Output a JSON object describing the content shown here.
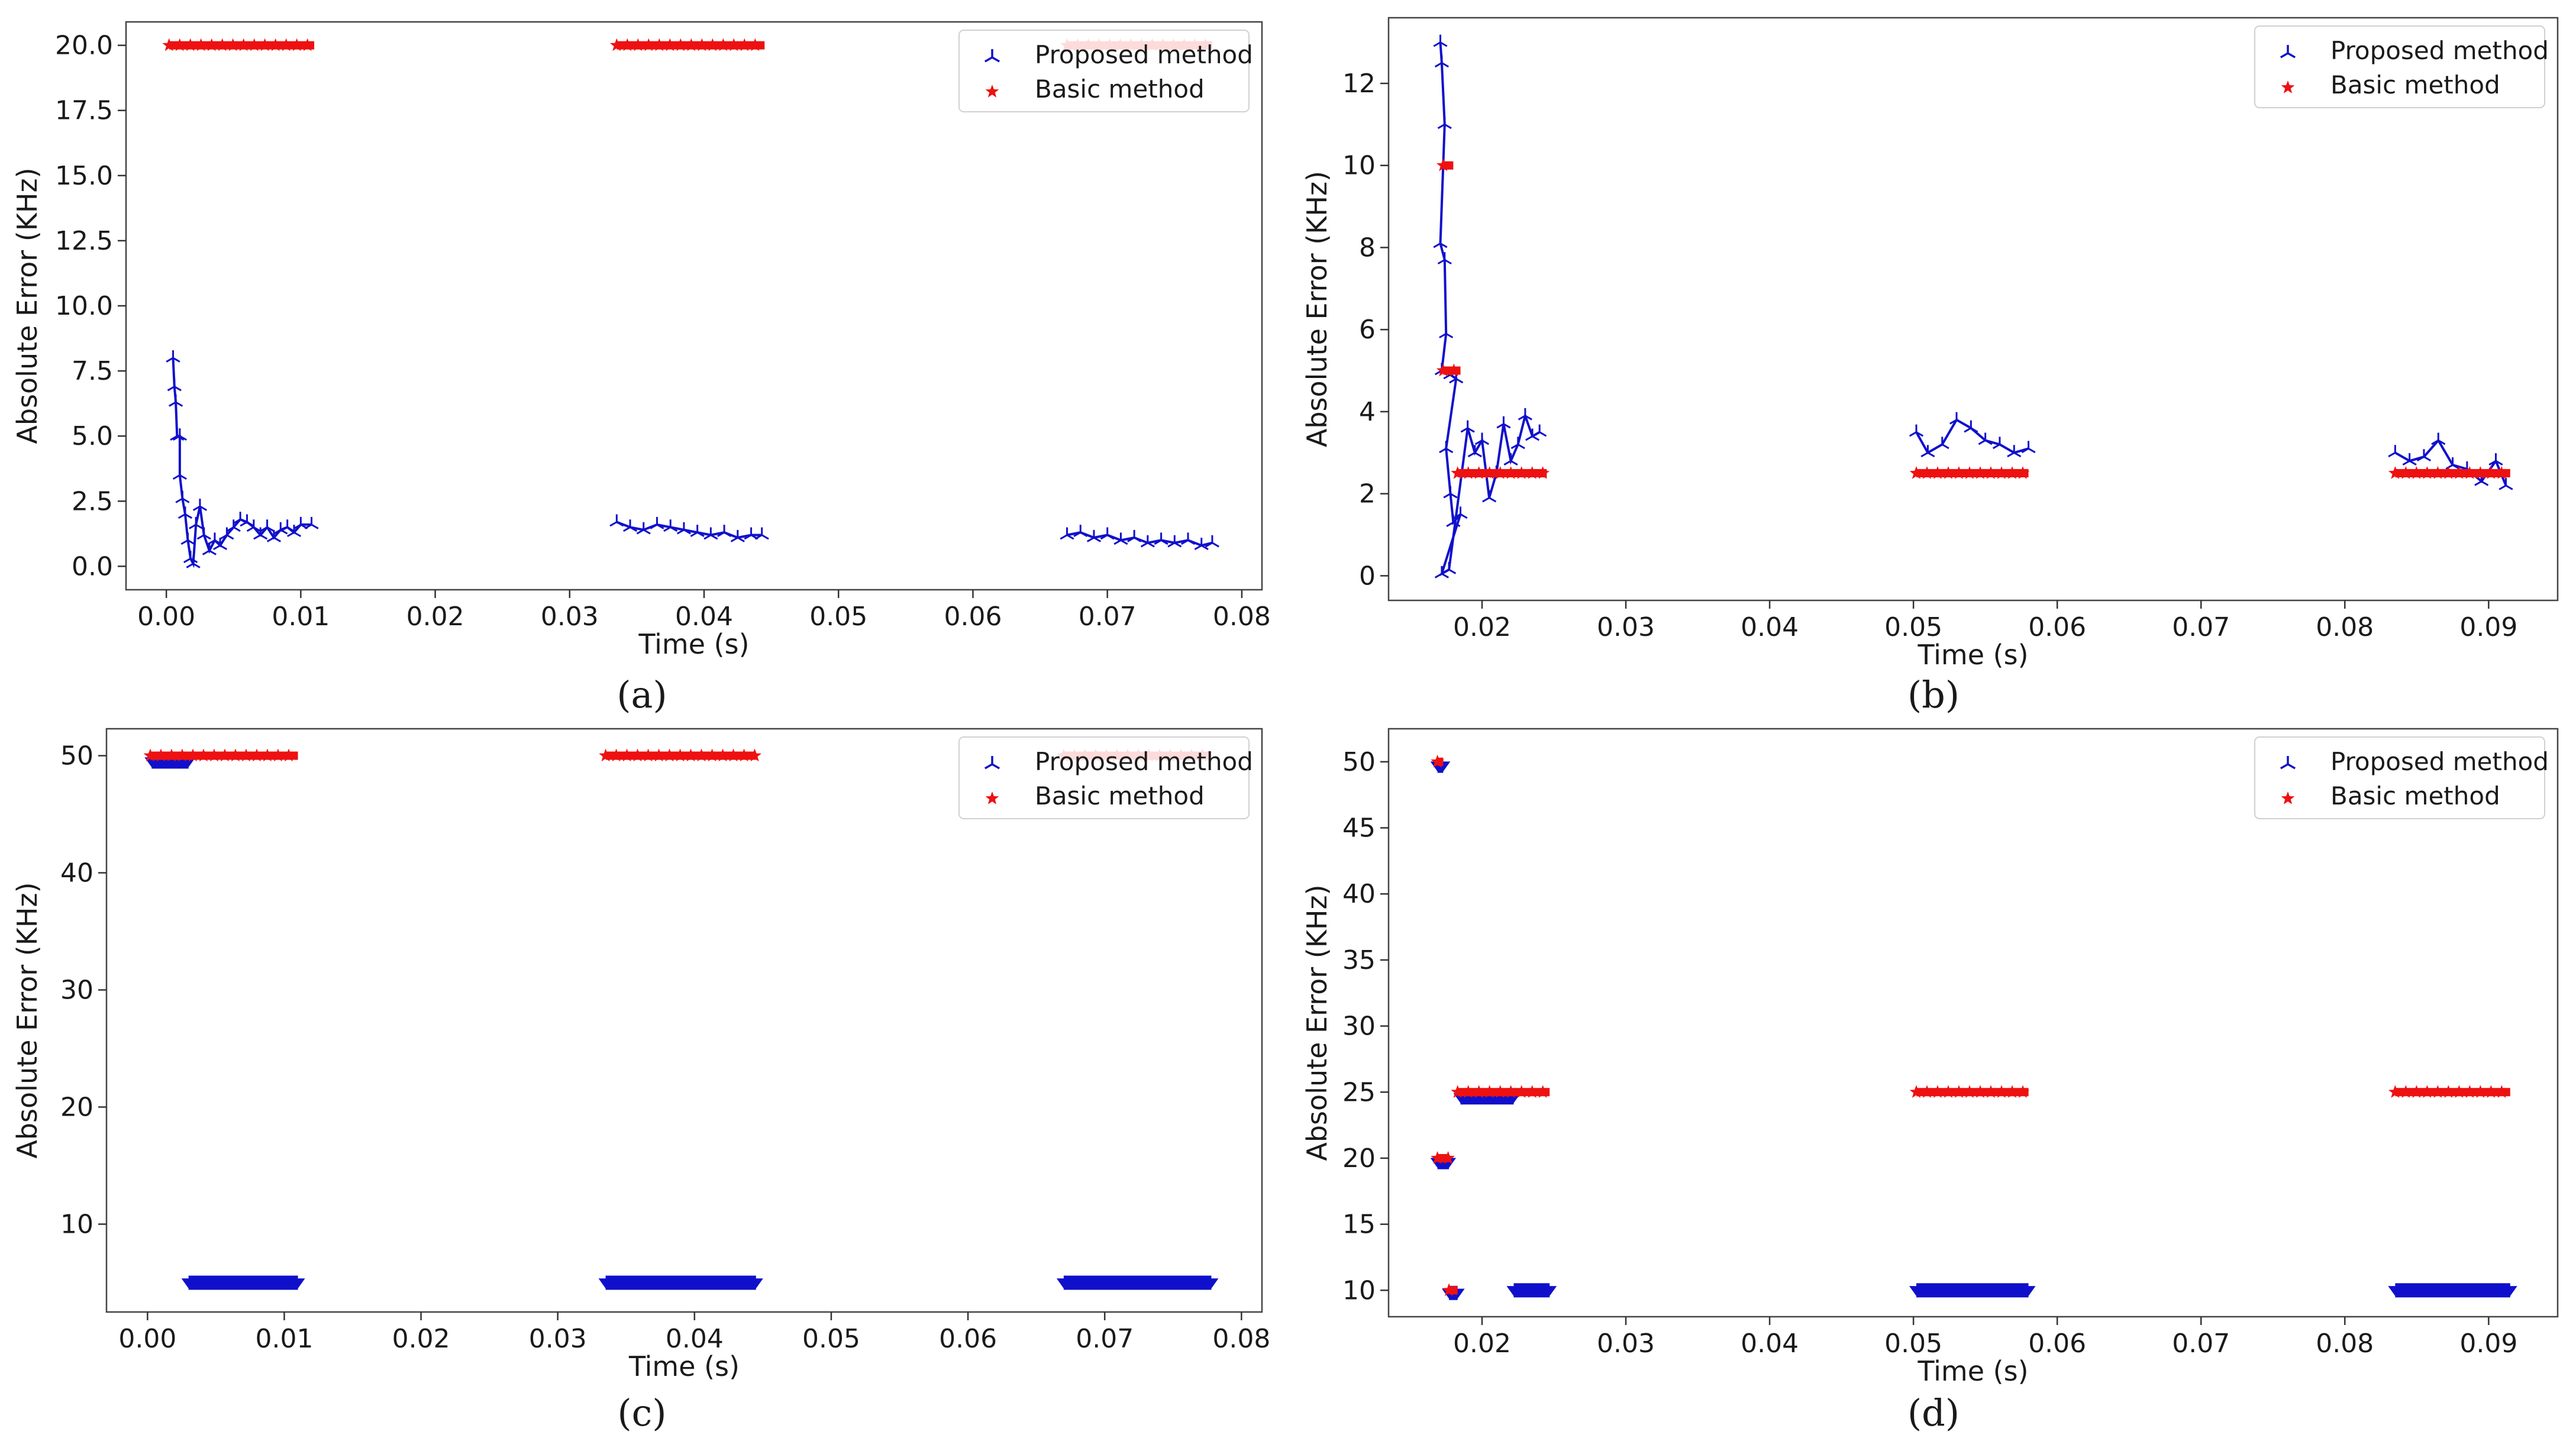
{
  "figure": {
    "panel_labels": [
      "(a)",
      "(b)",
      "(c)",
      "(d)"
    ]
  },
  "colors": {
    "proposed": "#1010cc",
    "basic": "#ee1111",
    "axis": "#333333",
    "frame": "#444444",
    "legend_border": "#d0d0d0"
  },
  "chart_data": [
    {
      "type": "scatter",
      "panel": "(a)",
      "xlabel": "Time (s)",
      "ylabel": "Absolute Error (KHz)",
      "xlim": [
        -0.003,
        0.0815
      ],
      "ylim": [
        -0.9,
        20.9
      ],
      "xticks": [
        0.0,
        0.01,
        0.02,
        0.03,
        0.04,
        0.05,
        0.06,
        0.07,
        0.08
      ],
      "xtick_labels": [
        "0.00",
        "0.01",
        "0.02",
        "0.03",
        "0.04",
        "0.05",
        "0.06",
        "0.07",
        "0.08"
      ],
      "yticks": [
        0.0,
        2.5,
        5.0,
        7.5,
        10.0,
        12.5,
        15.0,
        17.5,
        20.0
      ],
      "ytick_labels": [
        "0.0",
        "2.5",
        "5.0",
        "7.5",
        "10.0",
        "12.5",
        "15.0",
        "17.5",
        "20.0"
      ],
      "legend": [
        "Proposed method",
        "Basic method"
      ],
      "series": [
        {
          "name": "Proposed method",
          "segments": [
            {
              "x_start": 0.0004,
              "x_end": 0.011,
              "points": [
                [
                  0.0005,
                  8.0
                ],
                [
                  0.0006,
                  6.9
                ],
                [
                  0.0007,
                  6.3
                ],
                [
                  0.0008,
                  5.0
                ],
                [
                  0.001,
                  5.0
                ],
                [
                  0.001,
                  3.5
                ],
                [
                  0.0012,
                  2.6
                ],
                [
                  0.0014,
                  2.0
                ],
                [
                  0.0016,
                  1.0
                ],
                [
                  0.0018,
                  0.3
                ],
                [
                  0.002,
                  0.1
                ],
                [
                  0.0022,
                  1.6
                ],
                [
                  0.0025,
                  2.3
                ],
                [
                  0.0028,
                  1.2
                ],
                [
                  0.0032,
                  0.6
                ],
                [
                  0.0036,
                  1.0
                ],
                [
                  0.004,
                  0.8
                ],
                [
                  0.0045,
                  1.2
                ],
                [
                  0.005,
                  1.5
                ],
                [
                  0.0055,
                  1.8
                ],
                [
                  0.006,
                  1.7
                ],
                [
                  0.0065,
                  1.5
                ],
                [
                  0.007,
                  1.2
                ],
                [
                  0.0075,
                  1.5
                ],
                [
                  0.008,
                  1.1
                ],
                [
                  0.0085,
                  1.4
                ],
                [
                  0.009,
                  1.5
                ],
                [
                  0.0095,
                  1.3
                ],
                [
                  0.01,
                  1.6
                ],
                [
                  0.0108,
                  1.6
                ]
              ]
            },
            {
              "x_start": 0.0335,
              "x_end": 0.0445,
              "points": [
                [
                  0.0335,
                  1.7
                ],
                [
                  0.0345,
                  1.5
                ],
                [
                  0.0355,
                  1.4
                ],
                [
                  0.0365,
                  1.6
                ],
                [
                  0.0375,
                  1.5
                ],
                [
                  0.0385,
                  1.4
                ],
                [
                  0.0395,
                  1.3
                ],
                [
                  0.0405,
                  1.2
                ],
                [
                  0.0415,
                  1.3
                ],
                [
                  0.0425,
                  1.1
                ],
                [
                  0.0435,
                  1.2
                ],
                [
                  0.0443,
                  1.2
                ]
              ]
            },
            {
              "x_start": 0.067,
              "x_end": 0.0778,
              "points": [
                [
                  0.067,
                  1.2
                ],
                [
                  0.068,
                  1.3
                ],
                [
                  0.069,
                  1.1
                ],
                [
                  0.07,
                  1.2
                ],
                [
                  0.071,
                  1.0
                ],
                [
                  0.072,
                  1.1
                ],
                [
                  0.073,
                  0.9
                ],
                [
                  0.074,
                  1.0
                ],
                [
                  0.075,
                  0.9
                ],
                [
                  0.076,
                  1.0
                ],
                [
                  0.077,
                  0.8
                ],
                [
                  0.0778,
                  0.9
                ]
              ]
            }
          ]
        },
        {
          "name": "Basic method",
          "segments": [
            {
              "x_start": 0.0002,
              "x_end": 0.011,
              "value": 20.0
            },
            {
              "x_start": 0.0335,
              "x_end": 0.0445,
              "value": 20.0
            },
            {
              "x_start": 0.067,
              "x_end": 0.0778,
              "value": 20.0
            }
          ]
        }
      ]
    },
    {
      "type": "scatter",
      "panel": "(b)",
      "xlabel": "Time (s)",
      "ylabel": "Absolute Error (KHz)",
      "xlim": [
        0.0135,
        0.0948
      ],
      "ylim": [
        -0.6,
        13.6
      ],
      "xticks": [
        0.02,
        0.03,
        0.04,
        0.05,
        0.06,
        0.07,
        0.08,
        0.09
      ],
      "xtick_labels": [
        "0.02",
        "0.03",
        "0.04",
        "0.05",
        "0.06",
        "0.07",
        "0.08",
        "0.09"
      ],
      "yticks": [
        0,
        2,
        4,
        6,
        8,
        10,
        12
      ],
      "ytick_labels": [
        "0",
        "2",
        "4",
        "6",
        "8",
        "10",
        "12"
      ],
      "legend": [
        "Proposed method",
        "Basic method"
      ],
      "series": [
        {
          "name": "Proposed method",
          "segments": [
            {
              "x_start": 0.017,
              "x_end": 0.0245,
              "points": [
                [
                  0.0171,
                  13.0
                ],
                [
                  0.0172,
                  12.5
                ],
                [
                  0.0174,
                  11.0
                ],
                [
                  0.0171,
                  8.1
                ],
                [
                  0.0174,
                  7.7
                ],
                [
                  0.0175,
                  5.9
                ],
                [
                  0.0172,
                  5.0
                ],
                [
                  0.0178,
                  4.9
                ],
                [
                  0.0182,
                  4.8
                ],
                [
                  0.0175,
                  3.1
                ],
                [
                  0.0178,
                  2.0
                ],
                [
                  0.018,
                  1.3
                ],
                [
                  0.0185,
                  1.5
                ],
                [
                  0.0172,
                  0.05
                ],
                [
                  0.0177,
                  0.15
                ],
                [
                  0.019,
                  3.6
                ],
                [
                  0.0195,
                  3.0
                ],
                [
                  0.02,
                  3.3
                ],
                [
                  0.0205,
                  1.9
                ],
                [
                  0.021,
                  2.5
                ],
                [
                  0.0215,
                  3.7
                ],
                [
                  0.022,
                  2.8
                ],
                [
                  0.0225,
                  3.2
                ],
                [
                  0.023,
                  3.9
                ],
                [
                  0.0235,
                  3.4
                ],
                [
                  0.024,
                  3.5
                ]
              ]
            },
            {
              "x_start": 0.0502,
              "x_end": 0.058,
              "points": [
                [
                  0.0502,
                  3.5
                ],
                [
                  0.051,
                  3.0
                ],
                [
                  0.052,
                  3.2
                ],
                [
                  0.053,
                  3.8
                ],
                [
                  0.054,
                  3.6
                ],
                [
                  0.055,
                  3.3
                ],
                [
                  0.056,
                  3.2
                ],
                [
                  0.057,
                  3.0
                ],
                [
                  0.058,
                  3.1
                ]
              ]
            },
            {
              "x_start": 0.0835,
              "x_end": 0.0915,
              "points": [
                [
                  0.0835,
                  3.0
                ],
                [
                  0.0845,
                  2.8
                ],
                [
                  0.0855,
                  2.9
                ],
                [
                  0.0865,
                  3.3
                ],
                [
                  0.0875,
                  2.7
                ],
                [
                  0.0885,
                  2.6
                ],
                [
                  0.0895,
                  2.3
                ],
                [
                  0.0905,
                  2.8
                ],
                [
                  0.0912,
                  2.2
                ]
              ]
            }
          ]
        },
        {
          "name": "Basic method",
          "segments": [
            {
              "x_start": 0.0173,
              "x_end": 0.018,
              "value": 10.0
            },
            {
              "x_start": 0.0173,
              "x_end": 0.0185,
              "value": 5.0
            },
            {
              "x_start": 0.0183,
              "x_end": 0.0245,
              "value": 2.5
            },
            {
              "x_start": 0.0502,
              "x_end": 0.058,
              "value": 2.5
            },
            {
              "x_start": 0.0835,
              "x_end": 0.0915,
              "value": 2.5
            }
          ]
        }
      ]
    },
    {
      "type": "scatter",
      "panel": "(c)",
      "xlabel": "Time (s)",
      "ylabel": "Absolute Error (KHz)",
      "xlim": [
        -0.003,
        0.0815
      ],
      "ylim": [
        2.5,
        52.3
      ],
      "xticks": [
        0.0,
        0.01,
        0.02,
        0.03,
        0.04,
        0.05,
        0.06,
        0.07,
        0.08
      ],
      "xtick_labels": [
        "0.00",
        "0.01",
        "0.02",
        "0.03",
        "0.04",
        "0.05",
        "0.06",
        "0.07",
        "0.08"
      ],
      "yticks": [
        10,
        20,
        30,
        40,
        50
      ],
      "ytick_labels": [
        "10",
        "20",
        "30",
        "40",
        "50"
      ],
      "legend": [
        "Proposed method",
        "Basic method"
      ],
      "series": [
        {
          "name": "Proposed method",
          "segments": [
            {
              "x_start": 0.0003,
              "x_end": 0.003,
              "value": 49.5
            },
            {
              "x_start": 0.003,
              "x_end": 0.011,
              "value": 5.0
            },
            {
              "x_start": 0.0335,
              "x_end": 0.0445,
              "value": 5.0
            },
            {
              "x_start": 0.067,
              "x_end": 0.0778,
              "value": 5.0
            }
          ]
        },
        {
          "name": "Basic method",
          "segments": [
            {
              "x_start": 0.0002,
              "x_end": 0.011,
              "value": 50.0
            },
            {
              "x_start": 0.0335,
              "x_end": 0.0445,
              "value": 50.0
            },
            {
              "x_start": 0.067,
              "x_end": 0.0778,
              "value": 50.0
            }
          ]
        }
      ]
    },
    {
      "type": "scatter",
      "panel": "(d)",
      "xlabel": "Time (s)",
      "ylabel": "Absolute Error (KHz)",
      "xlim": [
        0.0135,
        0.0948
      ],
      "ylim": [
        8.0,
        52.5
      ],
      "xticks": [
        0.02,
        0.03,
        0.04,
        0.05,
        0.06,
        0.07,
        0.08,
        0.09
      ],
      "xtick_labels": [
        "0.02",
        "0.03",
        "0.04",
        "0.05",
        "0.06",
        "0.07",
        "0.08",
        "0.09"
      ],
      "yticks": [
        10,
        15,
        20,
        25,
        30,
        35,
        40,
        45,
        50
      ],
      "ytick_labels": [
        "10",
        "15",
        "20",
        "25",
        "30",
        "35",
        "40",
        "45",
        "50"
      ],
      "legend": [
        "Proposed method",
        "Basic method"
      ],
      "series": [
        {
          "name": "Proposed method",
          "segments": [
            {
              "x_start": 0.0169,
              "x_end": 0.0173,
              "value": 49.7
            },
            {
              "x_start": 0.0169,
              "x_end": 0.0177,
              "value": 19.7
            },
            {
              "x_start": 0.0177,
              "x_end": 0.0183,
              "value": 9.8
            },
            {
              "x_start": 0.0185,
              "x_end": 0.0222,
              "value": 24.6
            },
            {
              "x_start": 0.0222,
              "x_end": 0.0247,
              "value": 10.0
            },
            {
              "x_start": 0.0502,
              "x_end": 0.058,
              "value": 10.0
            },
            {
              "x_start": 0.0835,
              "x_end": 0.0915,
              "value": 10.0
            }
          ]
        },
        {
          "name": "Basic method",
          "segments": [
            {
              "x_start": 0.0169,
              "x_end": 0.0173,
              "value": 50.0
            },
            {
              "x_start": 0.0169,
              "x_end": 0.0177,
              "value": 20.0
            },
            {
              "x_start": 0.0177,
              "x_end": 0.0183,
              "value": 10.0
            },
            {
              "x_start": 0.0183,
              "x_end": 0.0247,
              "value": 25.0
            },
            {
              "x_start": 0.0502,
              "x_end": 0.058,
              "value": 25.0
            },
            {
              "x_start": 0.0835,
              "x_end": 0.0915,
              "value": 25.0
            }
          ]
        }
      ]
    }
  ]
}
